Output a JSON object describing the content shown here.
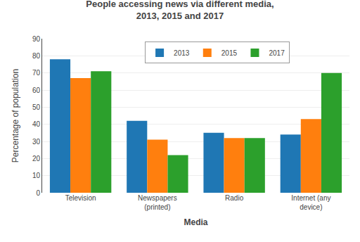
{
  "chart_data": {
    "type": "bar",
    "title": "People accessing news via different media,\n2013, 2015 and 2017",
    "x_label": "Media",
    "y_label": "Percentage of population",
    "categories": [
      "Television",
      "Newspapers\n(printed)",
      "Radio",
      "Internet (any\ndevice)"
    ],
    "series": [
      {
        "name": "2013",
        "values": [
          78,
          42,
          35,
          34
        ]
      },
      {
        "name": "2015",
        "values": [
          67,
          31,
          32,
          43
        ]
      },
      {
        "name": "2017",
        "values": [
          71,
          22,
          32,
          70
        ]
      }
    ],
    "ylim": [
      0,
      90
    ],
    "yticks": [
      0,
      10,
      20,
      30,
      40,
      50,
      60,
      70,
      80,
      90
    ],
    "grid": true,
    "legend": "top"
  }
}
